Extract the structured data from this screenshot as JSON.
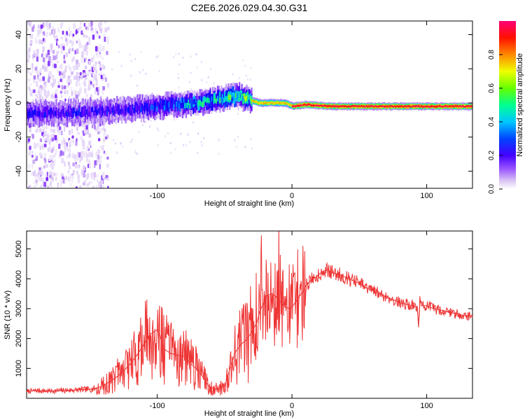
{
  "figure": {
    "title": "C2E6.2026.029.04.30.G31"
  },
  "chart_data": [
    {
      "type": "heatmap",
      "title": "C2E6.2026.029.04.30.G31",
      "xlabel": "Height of straight line (km)",
      "ylabel": "Frequency (Hz)",
      "xlim": [
        -197,
        134
      ],
      "ylim": [
        -50,
        48
      ],
      "xticks": [
        -100,
        0,
        100
      ],
      "xtick_labels": [
        "-100",
        "0",
        "100"
      ],
      "yticks": [
        -40,
        -20,
        0,
        20,
        40
      ],
      "ytick_labels": [
        "-40",
        "-20",
        "0",
        "20",
        "40"
      ],
      "colorbar": {
        "label": "Normalized spectral amplitude",
        "range": [
          0,
          1
        ],
        "ticks": [
          0,
          0.2,
          0.4,
          0.6,
          0.8
        ],
        "tick_labels": [
          "0.0",
          "0.2",
          "0.4",
          "0.6",
          "0.8"
        ],
        "colormap": [
          "#ffffff",
          "#d9c4f5",
          "#6600ff",
          "#0000ff",
          "#00c8ff",
          "#00ff80",
          "#aaff00",
          "#ffee00",
          "#ff8800",
          "#ff0000",
          "#ff0066"
        ]
      },
      "doppler_trace": {
        "x": [
          -197,
          -170,
          -150,
          -130,
          -110,
          -90,
          -70,
          -50,
          -40,
          -32,
          -25,
          -15,
          -5,
          0,
          10,
          30,
          60,
          90,
          120,
          134
        ],
        "y": [
          -6,
          -6,
          -5,
          -4,
          -3,
          -1,
          0,
          3,
          4,
          2,
          0,
          0,
          0,
          -2,
          -1,
          -2,
          -2,
          -2,
          -2,
          -2
        ]
      }
    },
    {
      "type": "line",
      "xlabel": "Height of straight line (km)",
      "ylabel": "SNR (10 * v/v)",
      "xlim": [
        -197,
        134
      ],
      "ylim": [
        0,
        5600
      ],
      "xticks": [
        -100,
        0,
        100
      ],
      "xtick_labels": [
        "-100",
        "0",
        "100"
      ],
      "yticks": [
        1000,
        2000,
        3000,
        4000,
        5000
      ],
      "ytick_labels": [
        "1000",
        "2000",
        "3000",
        "4000",
        "5000"
      ],
      "color": "#ee3333",
      "series": [
        {
          "name": "SNR",
          "x": [
            -197,
            -190,
            -180,
            -170,
            -160,
            -150,
            -145,
            -140,
            -135,
            -130,
            -125,
            -120,
            -115,
            -110,
            -105,
            -100,
            -98,
            -95,
            -90,
            -85,
            -80,
            -75,
            -70,
            -66,
            -62,
            -58,
            -55,
            -50,
            -45,
            -42,
            -38,
            -34,
            -30,
            -26,
            -24,
            -22,
            -20,
            -18,
            -15,
            -12,
            -10,
            -7,
            -5,
            -2,
            0,
            3,
            6,
            8,
            10,
            12,
            15,
            18,
            20,
            23,
            26,
            30,
            35,
            40,
            45,
            50,
            55,
            60,
            65,
            70,
            75,
            80,
            85,
            90,
            93,
            94,
            95,
            96,
            100,
            105,
            110,
            115,
            120,
            125,
            130,
            134
          ],
          "y": [
            230,
            260,
            240,
            260,
            280,
            300,
            340,
            430,
            560,
            720,
            920,
            1150,
            1450,
            1800,
            2150,
            2300,
            2100,
            1650,
            1500,
            1450,
            1400,
            1150,
            950,
            700,
            420,
            320,
            300,
            400,
            1150,
            1550,
            1800,
            1950,
            2200,
            2550,
            2900,
            3100,
            3300,
            3450,
            3500,
            3400,
            3300,
            3150,
            3050,
            3000,
            3050,
            3250,
            3450,
            3550,
            3750,
            3850,
            4000,
            4050,
            4150,
            4250,
            4300,
            4200,
            4150,
            4050,
            3950,
            3850,
            3700,
            3600,
            3500,
            3400,
            3300,
            3200,
            3150,
            3100,
            3050,
            2400,
            3350,
            3100,
            3100,
            3000,
            2950,
            2900,
            2850,
            2800,
            2750,
            2750
          ]
        }
      ]
    }
  ]
}
